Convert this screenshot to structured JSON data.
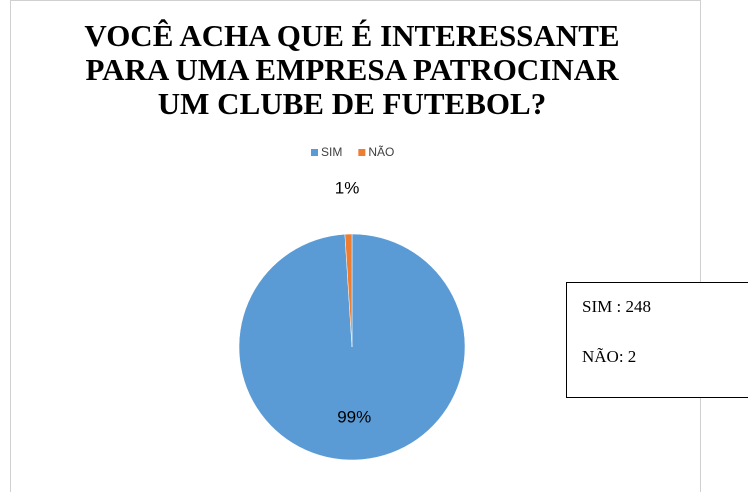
{
  "chart_data": {
    "type": "pie",
    "title": [
      "VOCÊ ACHA QUE É INTERESSANTE",
      "PARA UMA EMPRESA PATROCINAR",
      "UM CLUBE DE FUTEBOL?"
    ],
    "categories": [
      "SIM",
      "NÃO"
    ],
    "values": [
      99,
      1
    ],
    "value_labels": [
      "99%",
      "1%"
    ],
    "colors": [
      "#5b9bd5",
      "#ed7d31"
    ],
    "legend": "top",
    "annotations": [
      "SIM : 248",
      "NÃO: 2"
    ]
  }
}
